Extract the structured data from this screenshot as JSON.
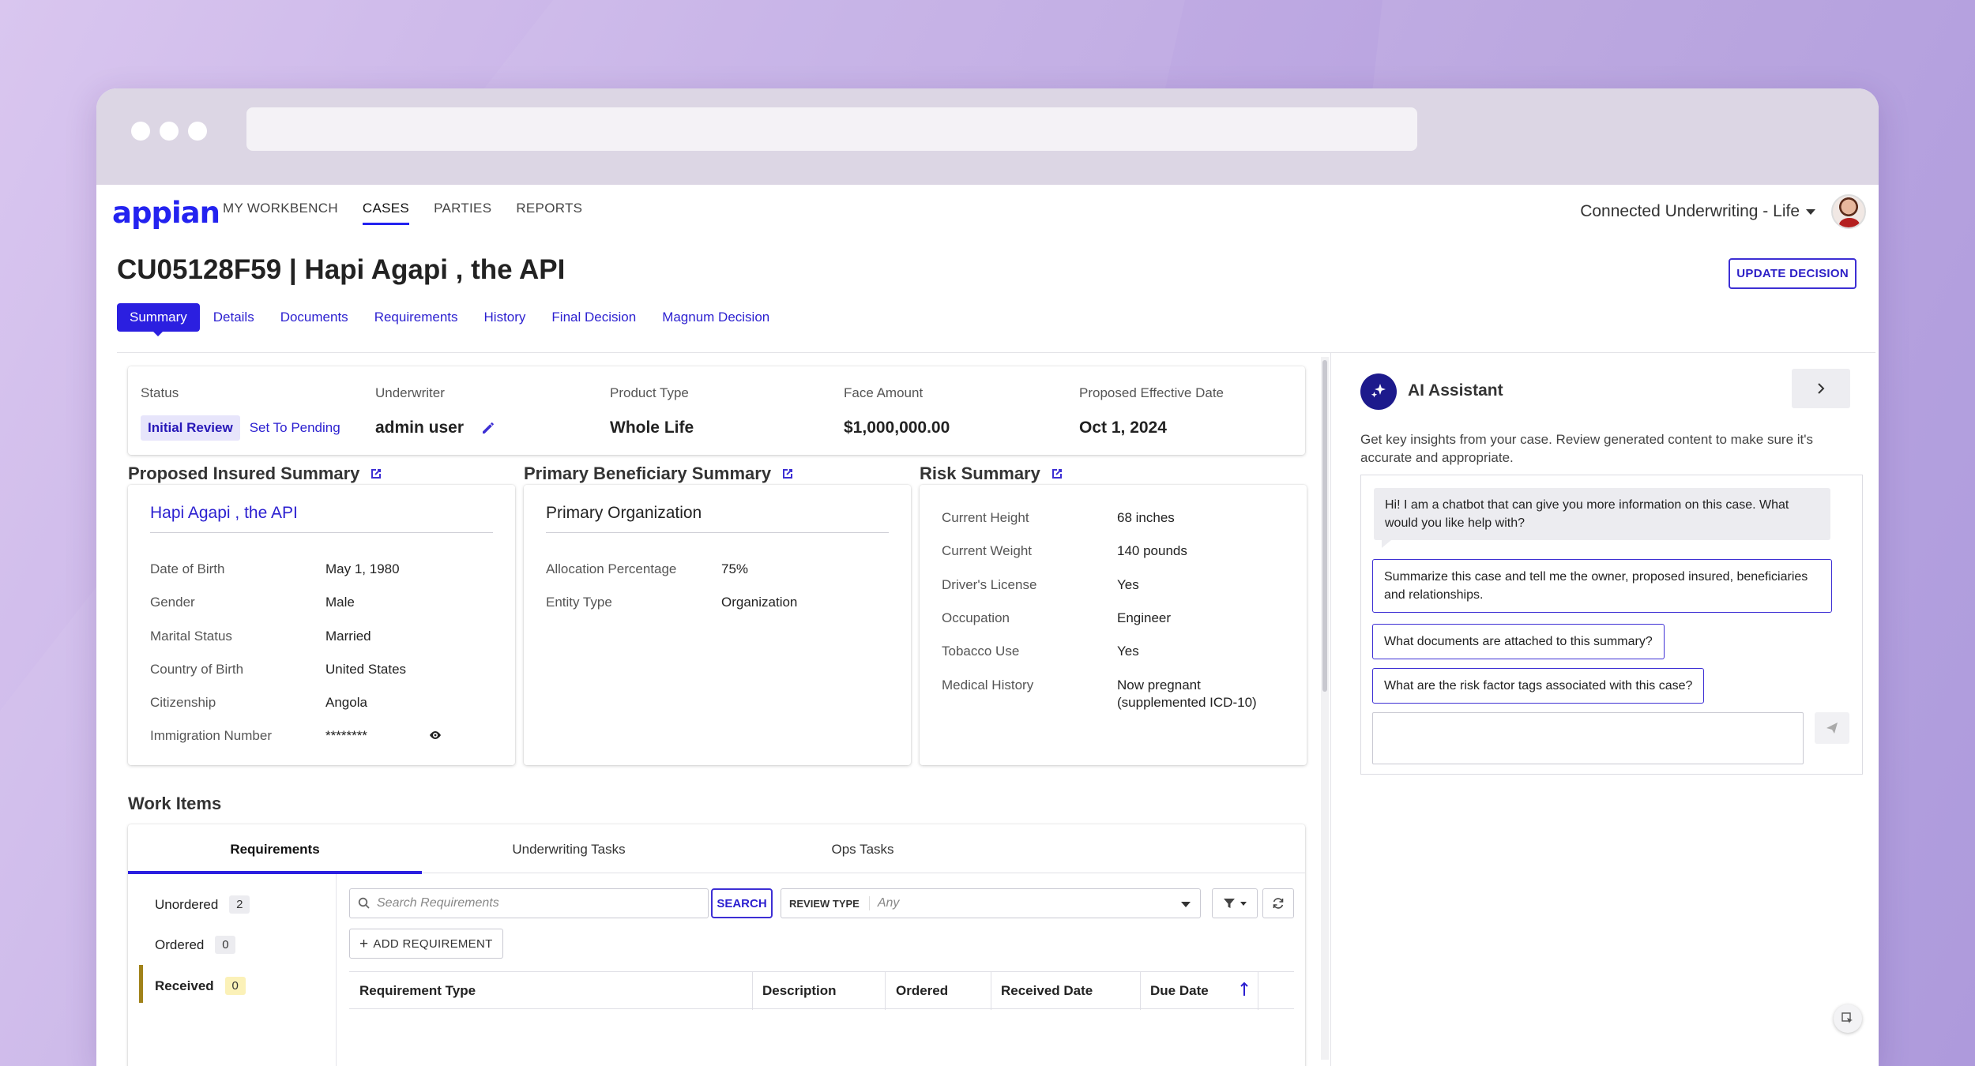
{
  "nav": {
    "logo": "appian",
    "items": [
      {
        "label": "MY WORKBENCH",
        "active": false
      },
      {
        "label": "CASES",
        "active": true
      },
      {
        "label": "PARTIES",
        "active": false
      },
      {
        "label": "REPORTS",
        "active": false
      }
    ],
    "app_name": "Connected Underwriting - Life"
  },
  "page": {
    "title": "CU05128F59 | Hapi Agapi , the API",
    "update_button": "UPDATE DECISION",
    "tabs": [
      "Summary",
      "Details",
      "Documents",
      "Requirements",
      "History",
      "Final Decision",
      "Magnum Decision"
    ]
  },
  "status_card": {
    "status_label": "Status",
    "status_value": "Initial Review",
    "status_link": "Set To Pending",
    "underwriter_label": "Underwriter",
    "underwriter_value": "admin user",
    "product_label": "Product Type",
    "product_value": "Whole Life",
    "face_label": "Face Amount",
    "face_value": "$1,000,000.00",
    "date_label": "Proposed Effective Date",
    "date_value": "Oct 1, 2024"
  },
  "insured": {
    "section_title": "Proposed Insured Summary",
    "name": "Hapi Agapi , the API",
    "rows": [
      {
        "k": "Date of Birth",
        "v": "May 1, 1980"
      },
      {
        "k": "Gender",
        "v": "Male"
      },
      {
        "k": "Marital Status",
        "v": "Married"
      },
      {
        "k": "Country of Birth",
        "v": "United States"
      },
      {
        "k": "Citizenship",
        "v": "Angola"
      },
      {
        "k": "Immigration Number",
        "v": "********"
      }
    ]
  },
  "beneficiary": {
    "section_title": "Primary Beneficiary Summary",
    "name": "Primary Organization",
    "rows": [
      {
        "k": "Allocation Percentage",
        "v": "75%"
      },
      {
        "k": "Entity Type",
        "v": "Organization"
      }
    ]
  },
  "risk": {
    "section_title": "Risk Summary",
    "rows": [
      {
        "k": "Current Height",
        "v": "68 inches"
      },
      {
        "k": "Current Weight",
        "v": "140 pounds"
      },
      {
        "k": "Driver's License",
        "v": "Yes"
      },
      {
        "k": "Occupation",
        "v": "Engineer"
      },
      {
        "k": "Tobacco Use",
        "v": "Yes"
      },
      {
        "k": "Medical History",
        "v": "Now pregnant",
        "v2": "(supplemented ICD-10)"
      }
    ]
  },
  "work_items": {
    "title": "Work Items",
    "tabs": [
      "Requirements",
      "Underwriting Tasks",
      "Ops Tasks"
    ],
    "filters": [
      {
        "label": "Unordered",
        "count": "2"
      },
      {
        "label": "Ordered",
        "count": "0"
      },
      {
        "label": "Received",
        "count": "0"
      }
    ],
    "search_placeholder": "Search Requirements",
    "search_button": "SEARCH",
    "review_type_label": "REVIEW TYPE",
    "review_type_value": "Any",
    "add_button": "ADD REQUIREMENT",
    "columns": [
      "Requirement Type",
      "Description",
      "Ordered",
      "Received Date",
      "Due Date"
    ]
  },
  "ai": {
    "title": "AI Assistant",
    "description": "Get key insights from your case. Review generated content to make sure it's accurate and appropriate.",
    "greeting": "Hi! I am a chatbot that can give you more information on this case. What would you like help with?",
    "suggestions": [
      "Summarize this case and tell me the owner, proposed insured, beneficiaries and relationships.",
      "What documents are attached to this summary?",
      "What are the risk factor tags associated with this case?"
    ]
  }
}
